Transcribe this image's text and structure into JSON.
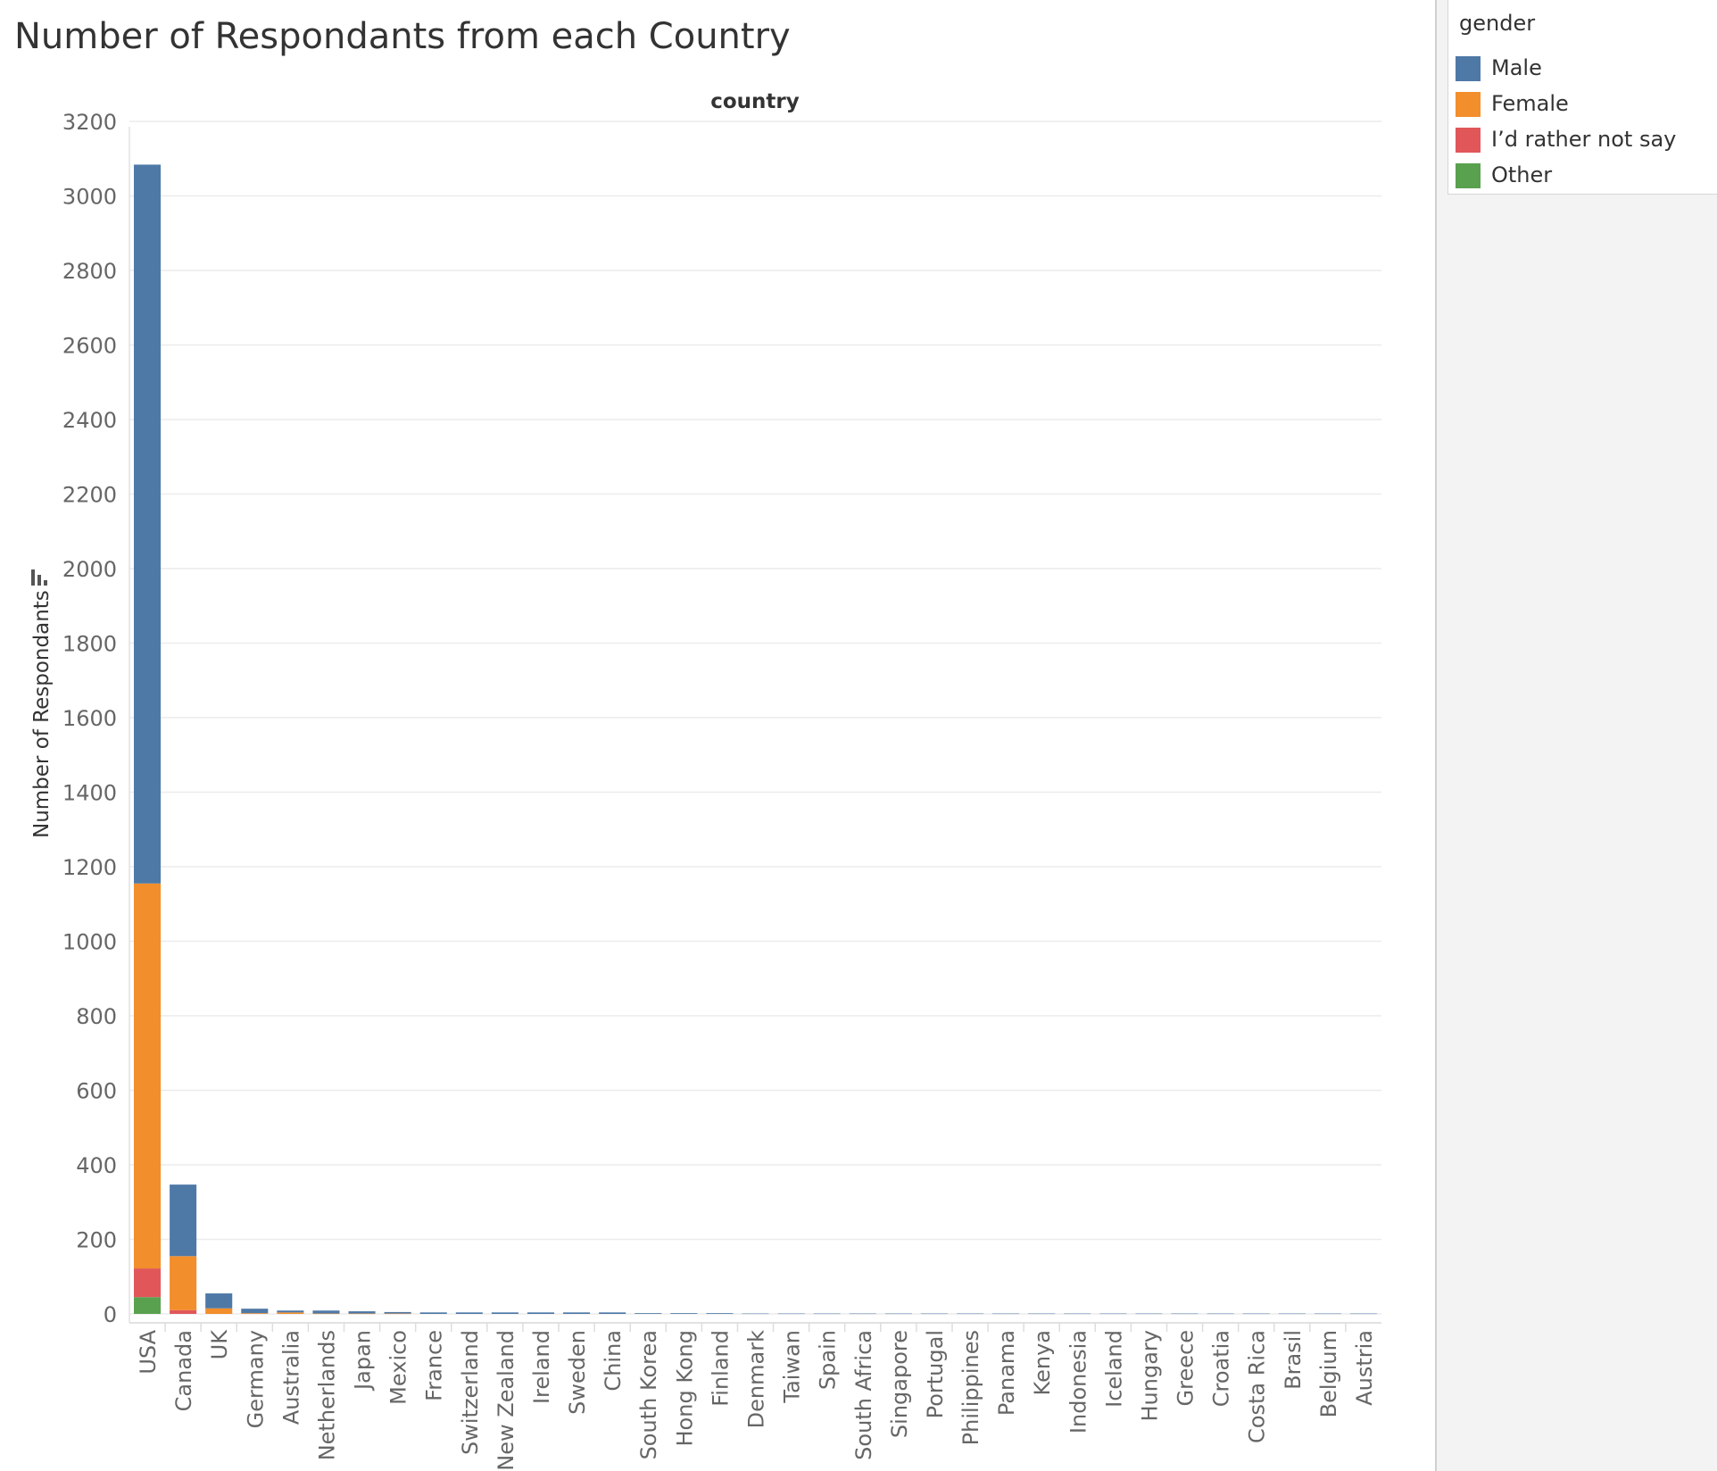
{
  "chart_data": {
    "type": "bar",
    "stacked": true,
    "title": "Number of Respondants from each Country",
    "xlabel": "country",
    "ylabel": "Number of Respondants",
    "ylim": [
      -40,
      3220
    ],
    "yticks": [
      0,
      200,
      400,
      600,
      800,
      1000,
      1200,
      1400,
      1600,
      1800,
      2000,
      2200,
      2400,
      2600,
      2800,
      3000,
      3200
    ],
    "grid": true,
    "legend_title": "gender",
    "legend_position": "top-right",
    "categories": [
      "USA",
      "Canada",
      "UK",
      "Germany",
      "Australia",
      "Netherlands",
      "Japan",
      "Mexico",
      "France",
      "Switzerland",
      "New Zealand",
      "Ireland",
      "Sweden",
      "China",
      "South Korea",
      "Hong Kong",
      "Finland",
      "Denmark",
      "Taiwan",
      "Spain",
      "South Africa",
      "Singapore",
      "Portugal",
      "Philippines",
      "Panama",
      "Kenya",
      "Indonesia",
      "Iceland",
      "Hungary",
      "Greece",
      "Croatia",
      "Costa Rica",
      "Brasil",
      "Belgium",
      "Austria"
    ],
    "series": [
      {
        "name": "Other",
        "color": "#59a14f",
        "values": [
          45,
          0,
          0,
          0,
          0,
          0,
          0,
          0,
          0,
          0,
          0,
          0,
          0,
          0,
          0,
          0,
          0,
          0,
          0,
          0,
          0,
          0,
          0,
          0,
          0,
          0,
          0,
          0,
          0,
          0,
          0,
          0,
          0,
          0,
          0
        ]
      },
      {
        "name": "I’d rather not say",
        "color": "#e15759",
        "values": [
          77,
          10,
          0,
          0,
          0,
          0,
          0,
          0,
          0,
          0,
          0,
          0,
          0,
          0,
          0,
          0,
          0,
          0,
          0,
          0,
          0,
          0,
          0,
          0,
          0,
          0,
          0,
          0,
          0,
          0,
          0,
          0,
          0,
          0,
          0
        ]
      },
      {
        "name": "Female",
        "color": "#f28e2b",
        "values": [
          1033,
          145,
          15,
          2,
          4,
          1,
          1,
          1,
          0,
          0,
          0,
          0,
          0,
          0,
          0,
          0,
          0,
          0,
          0,
          0,
          0,
          0,
          0,
          0,
          0,
          0,
          0,
          0,
          0,
          0,
          0,
          0,
          0,
          0,
          0
        ]
      },
      {
        "name": "Male",
        "color": "#4e79a7",
        "values": [
          1929,
          192,
          40,
          12,
          5,
          8,
          6,
          4,
          4,
          4,
          4,
          4,
          4,
          4,
          2,
          2,
          2,
          1,
          1,
          1,
          1,
          1,
          1,
          1,
          1,
          1,
          1,
          1,
          1,
          1,
          1,
          1,
          1,
          1,
          1
        ]
      }
    ]
  },
  "legend": {
    "title": "gender",
    "items": [
      {
        "label": "Male",
        "color": "#4e79a7"
      },
      {
        "label": "Female",
        "color": "#f28e2b"
      },
      {
        "label": "I’d rather not say",
        "color": "#e15759"
      },
      {
        "label": "Other",
        "color": "#59a14f"
      }
    ]
  },
  "icons": {
    "sort_icon": "sort-descending-icon"
  }
}
